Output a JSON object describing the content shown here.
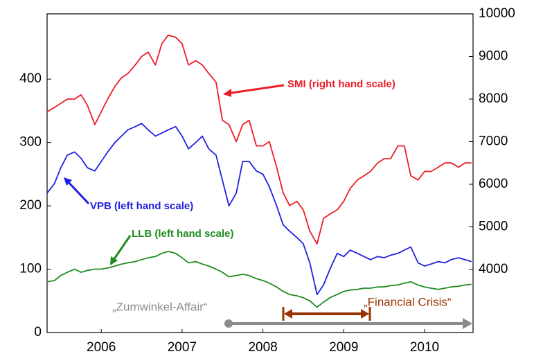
{
  "chart_data": {
    "type": "line",
    "x": [
      2005.83,
      2005.92,
      2006.0,
      2006.08,
      2006.17,
      2006.25,
      2006.33,
      2006.42,
      2006.5,
      2006.58,
      2006.67,
      2006.75,
      2006.83,
      2006.92,
      2007.0,
      2007.08,
      2007.17,
      2007.25,
      2007.33,
      2007.42,
      2007.5,
      2007.58,
      2007.67,
      2007.75,
      2007.83,
      2007.92,
      2008.0,
      2008.08,
      2008.17,
      2008.25,
      2008.33,
      2008.42,
      2008.5,
      2008.58,
      2008.67,
      2008.75,
      2008.83,
      2008.92,
      2009.0,
      2009.08,
      2009.17,
      2009.25,
      2009.33,
      2009.42,
      2009.5,
      2009.58,
      2009.67,
      2009.75,
      2009.83,
      2009.92,
      2010.0,
      2010.08,
      2010.17,
      2010.25,
      2010.33,
      2010.42,
      2010.5,
      2010.58,
      2010.67,
      2010.75,
      2010.83,
      2010.92,
      2011.0,
      2011.08
    ],
    "series": [
      {
        "name": "SMI (right hand scale)",
        "color": "#ee1c25",
        "axis": "y2",
        "values": [
          7700,
          7800,
          7900,
          8000,
          8000,
          8100,
          7850,
          7400,
          7700,
          8000,
          8300,
          8500,
          8600,
          8800,
          9000,
          9100,
          8800,
          9300,
          9500,
          9450,
          9300,
          8800,
          8900,
          8800,
          8600,
          8400,
          7500,
          7400,
          7000,
          7400,
          7500,
          6900,
          6900,
          7000,
          6400,
          5800,
          5500,
          5600,
          5400,
          4900,
          4600,
          5200,
          5300,
          5400,
          5600,
          5900,
          6100,
          6200,
          6300,
          6500,
          6600,
          6600,
          6900,
          6900,
          6200,
          6100,
          6300,
          6300,
          6400,
          6500,
          6500,
          6400,
          6500,
          6500
        ]
      },
      {
        "name": "VPB (left hand scale)",
        "color": "#1f1fe0",
        "values": [
          220,
          235,
          260,
          280,
          285,
          275,
          260,
          255,
          270,
          285,
          300,
          310,
          320,
          325,
          330,
          320,
          310,
          315,
          320,
          325,
          310,
          290,
          300,
          310,
          290,
          280,
          240,
          200,
          220,
          270,
          270,
          255,
          250,
          230,
          200,
          170,
          160,
          150,
          140,
          110,
          60,
          75,
          100,
          125,
          120,
          130,
          125,
          120,
          115,
          120,
          118,
          122,
          125,
          130,
          135,
          110,
          105,
          108,
          112,
          110,
          115,
          118,
          115,
          112
        ]
      },
      {
        "name": "LLB (left hand scale)",
        "color": "#1e8c1e",
        "values": [
          80,
          82,
          90,
          95,
          100,
          95,
          98,
          100,
          100,
          102,
          105,
          108,
          110,
          112,
          115,
          118,
          120,
          125,
          128,
          125,
          118,
          110,
          112,
          108,
          105,
          100,
          95,
          88,
          90,
          92,
          90,
          85,
          82,
          78,
          72,
          65,
          60,
          58,
          55,
          50,
          40,
          48,
          55,
          60,
          65,
          67,
          68,
          70,
          70,
          72,
          72,
          74,
          75,
          78,
          80,
          75,
          72,
          70,
          68,
          70,
          72,
          73,
          75,
          76
        ]
      }
    ],
    "xlim": [
      2005.83,
      2011.1
    ],
    "xticks": [
      {
        "value": 2006.5,
        "label": "2006"
      },
      {
        "value": 2007.5,
        "label": "2007"
      },
      {
        "value": 2008.5,
        "label": "2008"
      },
      {
        "value": 2009.5,
        "label": "2009"
      },
      {
        "value": 2010.5,
        "label": "2010"
      }
    ],
    "ylim": [
      0,
      503
    ],
    "yticks": [
      0,
      100,
      200,
      300,
      400
    ],
    "y2lim": [
      2520,
      10000
    ],
    "y2ticks": [
      4000,
      5000,
      6000,
      7000,
      8000,
      9000,
      10000
    ],
    "annotations": [
      "„Zumwinkel-Affair“",
      "„Financial Crisis“"
    ]
  }
}
